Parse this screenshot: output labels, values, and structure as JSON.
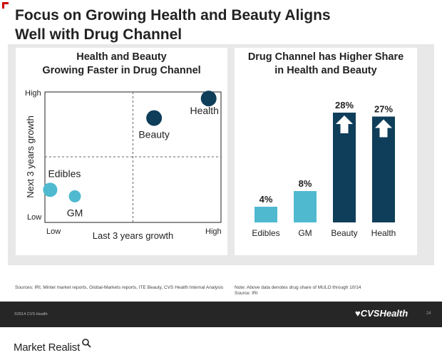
{
  "title_line1": "Focus on Growing Health and Beauty Aligns",
  "title_line2": "Well with Drug Channel",
  "colors": {
    "accent_red": "#cc0000",
    "dark_navy": "#0f3e5a",
    "light_blue": "#4fb9d0"
  },
  "chart_data": [
    {
      "type": "scatter",
      "title": "Health and Beauty Growing Faster in Drug Channel",
      "title_lines": [
        "Health and Beauty",
        "Growing Faster in Drug Channel"
      ],
      "xlabel": "Last 3 years growth",
      "ylabel": "Next 3 years growth",
      "x_tick_labels": [
        "Low",
        "High"
      ],
      "y_tick_labels": [
        "Low",
        "High"
      ],
      "xlim": [
        0,
        1
      ],
      "ylim": [
        0,
        1
      ],
      "grid": "quadrant dashed lines",
      "points": [
        {
          "label": "Health",
          "x": 0.93,
          "y": 0.95,
          "color": "#0f3e5a"
        },
        {
          "label": "Beauty",
          "x": 0.62,
          "y": 0.8,
          "color": "#0f3e5a"
        },
        {
          "label": "Edibles",
          "x": 0.03,
          "y": 0.25,
          "color": "#4fb9d0"
        },
        {
          "label": "GM",
          "x": 0.17,
          "y": 0.2,
          "color": "#4fb9d0"
        }
      ]
    },
    {
      "type": "bar",
      "title": "Drug Channel has Higher Share in Health and Beauty",
      "title_lines": [
        "Drug Channel has Higher Share",
        "in Health and Beauty"
      ],
      "categories": [
        "Edibles",
        "GM",
        "Beauty",
        "Health"
      ],
      "values": [
        4,
        8,
        28,
        27
      ],
      "value_labels": [
        "4%",
        "8%",
        "28%",
        "27%"
      ],
      "colors": [
        "#4fb9d0",
        "#4fb9d0",
        "#0f3e5a",
        "#0f3e5a"
      ],
      "arrows": [
        false,
        false,
        true,
        true
      ],
      "ylim": [
        0,
        30
      ]
    }
  ],
  "footer": {
    "sources": "Sources: IRI, Mintel market reports, Global-Markets reports, ITE Beauty, CVS Health Internal Analysis",
    "note_line1": "Note: Above data denotes drug share of MULO through 10/14",
    "note_line2": "Source: IRI",
    "copyright": "©2014 CVS Health",
    "brand": "♥CVSHealth",
    "page_number": "24"
  },
  "watermark": "Market Realist"
}
